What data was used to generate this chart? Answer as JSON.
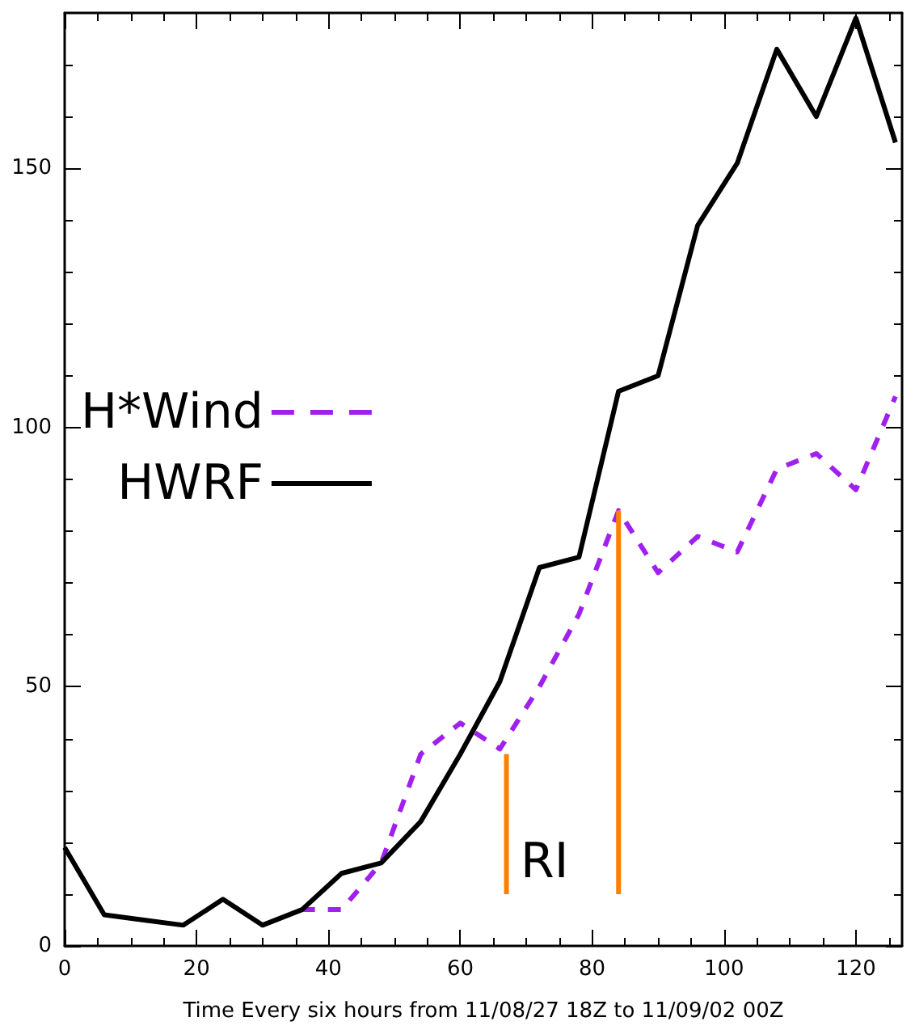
{
  "chart_data": {
    "type": "line",
    "xlabel": "Time Every six hours from 11/08/27 18Z to 11/09/02 00Z",
    "xlim": [
      0,
      127
    ],
    "xticks": [
      0,
      20,
      40,
      60,
      80,
      100,
      120
    ],
    "ylim": [
      0,
      180
    ],
    "yticks": [
      0,
      50,
      100,
      150
    ],
    "grid": false,
    "legend": "left",
    "marker": "none",
    "annotations": [
      "RI"
    ],
    "series": [
      {
        "name": "H*Wind",
        "color": "#a020f0",
        "line_style": "dashed",
        "x": [
          36,
          42,
          48,
          54,
          60,
          66,
          72,
          78,
          84,
          90,
          96,
          102,
          108,
          114,
          120,
          126
        ],
        "values": [
          7,
          7,
          16,
          37,
          43,
          38,
          50,
          64,
          84,
          72,
          79,
          76,
          92,
          95,
          88,
          106
        ]
      },
      {
        "name": "HWRF",
        "color": "#000000",
        "line_style": "solid",
        "x": [
          0,
          6,
          12,
          18,
          24,
          30,
          36,
          42,
          48,
          54,
          60,
          66,
          72,
          78,
          84,
          90,
          96,
          102,
          108,
          114,
          120,
          126
        ],
        "values": [
          19,
          6,
          5,
          4,
          9,
          4,
          7,
          14,
          16,
          24,
          37,
          51,
          73,
          75,
          107,
          110,
          139,
          151,
          173,
          160,
          179,
          155
        ]
      },
      {
        "color": "#ff8000",
        "line_style": "solid",
        "x": [
          67,
          67,
          null,
          84,
          84
        ],
        "values": [
          10,
          37,
          null,
          10,
          84
        ]
      }
    ]
  }
}
